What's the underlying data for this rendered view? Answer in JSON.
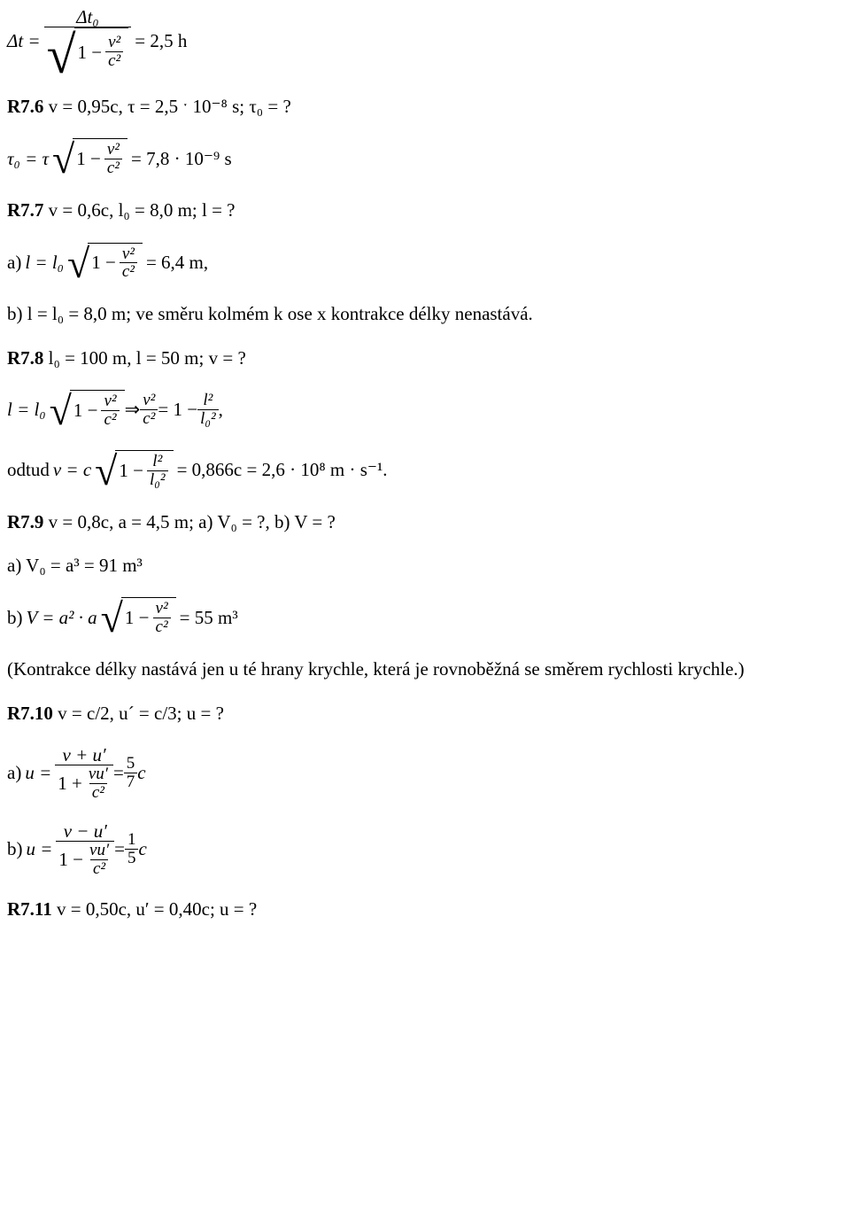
{
  "colors": {
    "text": "#000000",
    "bg": "#ffffff",
    "rule": "#000000"
  },
  "typography": {
    "family": "Times New Roman",
    "base_pt": 16,
    "bold_weight": 700
  },
  "eq_dt": {
    "lhs": "Δt =",
    "num": "Δt₀",
    "den_prefix": "1 −",
    "inner_num": "v²",
    "inner_den": "c²",
    "result": "= 2,5 h"
  },
  "r76": {
    "label": "R7.6",
    "text": " v = 0,95c,  τ = 2,5 ˑ 10⁻⁸ s;  τ₀ = ?"
  },
  "eq_tau0": {
    "lhs": "τ₀ = τ",
    "one_minus": "1 −",
    "inner_num": "v²",
    "inner_den": "c²",
    "result": "= 7,8 · 10⁻⁹ s"
  },
  "r77": {
    "label": "R7.7",
    "text": " v = 0,6c, l₀ = 8,0 m; l = ?"
  },
  "eq_l_a": {
    "prefix": "a) ",
    "lhs_l": "l = l₀",
    "one_minus": "1 −",
    "inner_num": "v²",
    "inner_den": "c²",
    "result": "= 6,4 m,"
  },
  "line_b": "b) l = l₀ = 8,0 m; ve směru kolmém k ose x kontrakce délky nenastává.",
  "r78": {
    "label": "R7.8",
    "text": " l₀ = 100 m, l = 50 m; v = ?"
  },
  "eq_l_impl": {
    "lhs": "l = l₀",
    "one_minus": "1 −",
    "inner_num": "v²",
    "inner_den": "c²",
    "arrow": " ⇒ ",
    "rhs_left_num": "v²",
    "rhs_left_den": "c²",
    "eq": " = 1 − ",
    "rhs_right_num": "l²",
    "rhs_right_den": "l₀²",
    "end": ","
  },
  "eq_odtud": {
    "prefix": "odtud  ",
    "lhs": "v = c",
    "one_minus": "1 −",
    "inner_num": "l²",
    "inner_den": "l₀²",
    "result": "= 0,866c = 2,6 · 10⁸ m · s⁻¹."
  },
  "r79": {
    "label": "R7.9",
    "text": " v = 0,8c, a = 4,5 m; a) V₀ = ?, b) V = ?"
  },
  "eq_V0": "a) V₀ = a³ =  91 m³",
  "eq_V": {
    "prefix": "b) ",
    "lhs": "V = a² · a",
    "one_minus": "1 −",
    "inner_num": "v²",
    "inner_den": "c²",
    "result": "= 55 m³"
  },
  "note": "(Kontrakce délky nastává jen u té hrany krychle, která je rovnoběžná se směrem rychlosti krychle.)",
  "r710": {
    "label": "R7.10",
    "text": " v =  c/2, u´ = c/3; u = ?"
  },
  "eq_u_a": {
    "prefix": "a) ",
    "lhs": "u = ",
    "top": "v + u′",
    "bot_prefix": "1 +",
    "bot_num": "vu′",
    "bot_den": "c²",
    "eq": " = ",
    "res_num": "5",
    "res_den": "7",
    "res_suffix": " c"
  },
  "eq_u_b": {
    "prefix": "b) ",
    "lhs": "u = ",
    "top": "v − u′",
    "bot_prefix": "1 −",
    "bot_num": "vu′",
    "bot_den": "c²",
    "eq": " = ",
    "res_num": "1",
    "res_den": "5",
    "res_suffix": " c"
  },
  "r711": {
    "label": "R7.11",
    "text": " v = 0,50c, u′ = 0,40c; u = ?"
  }
}
